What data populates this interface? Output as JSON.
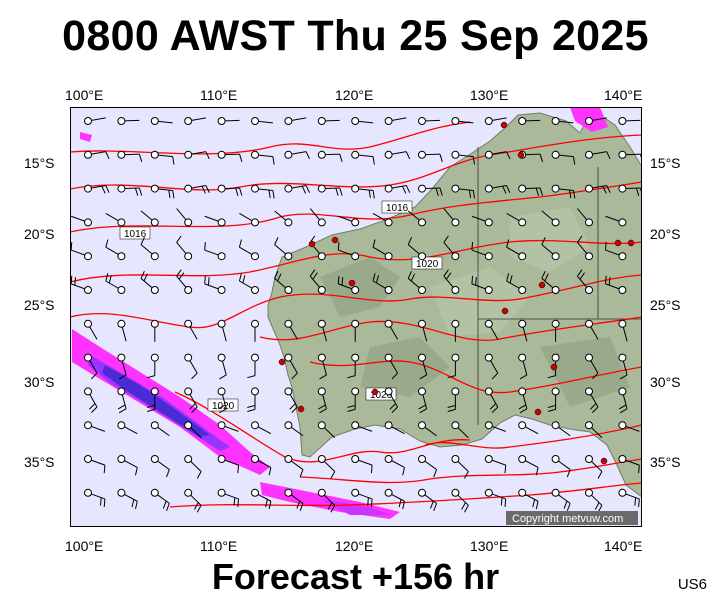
{
  "header": {
    "title": "0800 AWST Thu 25 Sep 2025"
  },
  "footer": {
    "forecast": "Forecast +156 hr",
    "code": "US6"
  },
  "map": {
    "lon_labels": [
      "100°E",
      "110°E",
      "120°E",
      "130°E",
      "140°E"
    ],
    "lat_labels": [
      "15°S",
      "20°S",
      "25°S",
      "30°S",
      "35°S"
    ],
    "isobar_labels": [
      "1016",
      "1016",
      "1020",
      "1020",
      "1020"
    ],
    "copyright": "Copyright metvuw.com",
    "colors": {
      "ocean": "#e6e6ff",
      "land": "#a9b99a",
      "isobar": "#ff0000",
      "rain_light": "#ff33ff",
      "rain_heavy": "#4b2bd6",
      "station": "#cc0000"
    },
    "icons": {
      "wind_barb": "wind-barb-icon",
      "station": "station-dot-icon"
    }
  }
}
